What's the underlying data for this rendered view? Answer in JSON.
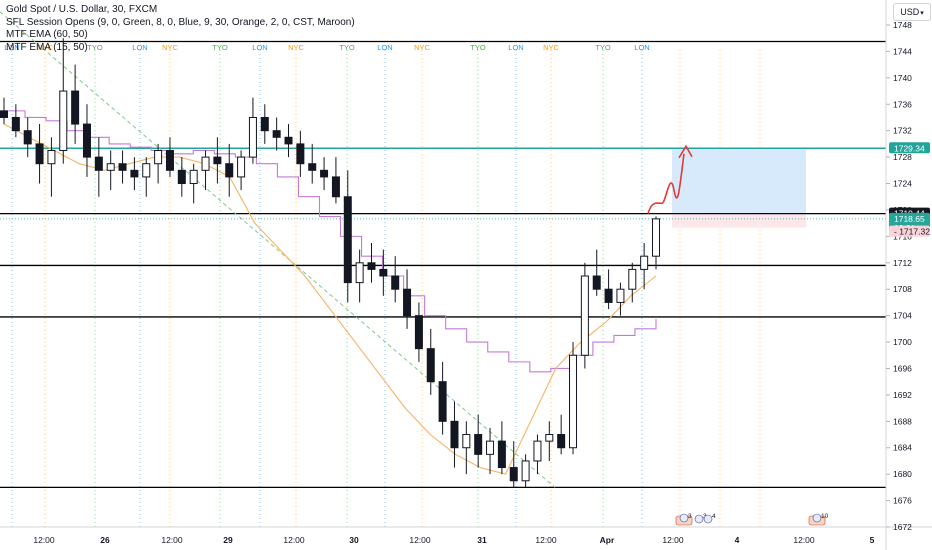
{
  "legend": {
    "line1": "Gold Spot / U.S. Dollar, 30, FXCM",
    "line2": "SFL Session Opens (9, 0, Green, 8, 0, Blue, 9, 30, Orange, 2, 0, CST, Maroon)",
    "line3": "MTF EMA (60, 50)",
    "line4": "MTF EMA (15, 50)"
  },
  "currency_button": {
    "label": "USD"
  },
  "colors": {
    "background": "#ffffff",
    "candle": "#131722",
    "ema60": "#c27bd9",
    "ema15": "#f7b264",
    "trendline": "#7fc98c",
    "level_line": "#000000",
    "target_line": "#22a49a",
    "target_box": "#d6eafc",
    "stop_box": "#fce8ea",
    "projection": "#e53935",
    "tyo": "#4caf50",
    "lon": "#2196f3",
    "nyc": "#ff9800",
    "price_tag": "#26a69a",
    "red_tag": "#f9d3d8"
  },
  "chart_data": {
    "type": "candlestick",
    "symbol": "Gold Spot / U.S. Dollar",
    "interval": "30",
    "ylim": [
      1670,
      1752
    ],
    "y_ticks": [
      1672,
      1676,
      1680,
      1684,
      1688,
      1692,
      1696,
      1700,
      1704,
      1708,
      1712,
      1716,
      1720,
      1724,
      1728,
      1732,
      1736,
      1740,
      1744,
      1748
    ],
    "x_ticks": [
      "12:00",
      "26",
      "12:00",
      "29",
      "12:00",
      "30",
      "12:00",
      "31",
      "12:00",
      "Apr",
      "12:00",
      "4",
      "12:00",
      "5"
    ],
    "session_labels": [
      "LON",
      "NYC",
      "TYO",
      "LON",
      "NYC",
      "TYO",
      "LON",
      "NYC",
      "TYO",
      "LON",
      "NYC",
      "TYO",
      "LON",
      "NYC",
      "TYO",
      "LON"
    ],
    "horizontal_levels": [
      1745.5,
      1729.34,
      1719.44,
      1711.6,
      1703.8,
      1678.0
    ],
    "price_labels": [
      {
        "text": "1729.34",
        "value": 1729.34,
        "kind": "target"
      },
      {
        "text": "1719.44",
        "value": 1719.44,
        "kind": "level"
      },
      {
        "text": "1718.65",
        "value": 1718.65,
        "kind": "last"
      },
      {
        "text": "02:31",
        "value": 1717.0,
        "kind": "countdown"
      },
      {
        "text": "1717.32",
        "value": 1717.32,
        "kind": "stop"
      }
    ],
    "ema60": [
      1735,
      1734,
      1733.5,
      1732,
      1731,
      1730,
      1729.5,
      1729,
      1728.5,
      1729,
      1728.5,
      1728,
      1727,
      1725,
      1722,
      1719,
      1716,
      1713,
      1710,
      1707,
      1704,
      1702,
      1700,
      1698.5,
      1697,
      1695.5,
      1696,
      1698,
      1700,
      1701,
      1702,
      1703.5
    ],
    "ema15": [
      1733,
      1731,
      1729,
      1727,
      1726,
      1727,
      1728,
      1728,
      1727,
      1725,
      1718,
      1714,
      1710,
      1705,
      1700,
      1695,
      1690,
      1686,
      1683,
      1681,
      1680,
      1688,
      1696,
      1700,
      1703,
      1707,
      1710
    ],
    "candles": [
      [
        1735,
        1737,
        1733,
        1734
      ],
      [
        1734,
        1736,
        1731,
        1732
      ],
      [
        1732,
        1734,
        1728,
        1730
      ],
      [
        1730,
        1733,
        1724,
        1727
      ],
      [
        1727,
        1731,
        1722,
        1729
      ],
      [
        1729,
        1746,
        1727,
        1738
      ],
      [
        1738,
        1742,
        1730,
        1733
      ],
      [
        1733,
        1736,
        1725,
        1728
      ],
      [
        1728,
        1731,
        1722,
        1726
      ],
      [
        1726,
        1729,
        1723,
        1727
      ],
      [
        1727,
        1729,
        1724,
        1726
      ],
      [
        1726,
        1728,
        1723,
        1725
      ],
      [
        1725,
        1728,
        1722,
        1727
      ],
      [
        1727,
        1730,
        1724,
        1729
      ],
      [
        1729,
        1731,
        1725,
        1726
      ],
      [
        1726,
        1728,
        1722,
        1724
      ],
      [
        1724,
        1727,
        1721,
        1726
      ],
      [
        1726,
        1729,
        1723,
        1728
      ],
      [
        1728,
        1731,
        1724,
        1727
      ],
      [
        1727,
        1730,
        1722,
        1725
      ],
      [
        1725,
        1729,
        1723,
        1728
      ],
      [
        1728,
        1737,
        1727,
        1734
      ],
      [
        1734,
        1736,
        1730,
        1732
      ],
      [
        1732,
        1734,
        1729,
        1731
      ],
      [
        1731,
        1733,
        1728,
        1730
      ],
      [
        1730,
        1732,
        1725,
        1727
      ],
      [
        1727,
        1730,
        1724,
        1726
      ],
      [
        1726,
        1728,
        1723,
        1725
      ],
      [
        1725,
        1728,
        1721,
        1722
      ],
      [
        1722,
        1726,
        1706,
        1709
      ],
      [
        1709,
        1714,
        1706,
        1712
      ],
      [
        1712,
        1715,
        1709,
        1711
      ],
      [
        1711,
        1714,
        1707,
        1710
      ],
      [
        1710,
        1713,
        1706,
        1708
      ],
      [
        1708,
        1711,
        1702,
        1704
      ],
      [
        1704,
        1706,
        1697,
        1699
      ],
      [
        1699,
        1702,
        1692,
        1694
      ],
      [
        1694,
        1697,
        1686,
        1688
      ],
      [
        1688,
        1691,
        1681,
        1684
      ],
      [
        1684,
        1688,
        1680,
        1686
      ],
      [
        1686,
        1689,
        1681,
        1683
      ],
      [
        1683,
        1687,
        1680,
        1685
      ],
      [
        1685,
        1688,
        1680,
        1681
      ],
      [
        1681,
        1685,
        1678,
        1679
      ],
      [
        1679,
        1683,
        1678,
        1682
      ],
      [
        1682,
        1686,
        1680,
        1685
      ],
      [
        1685,
        1688,
        1682,
        1686
      ],
      [
        1686,
        1689,
        1683,
        1684
      ],
      [
        1684,
        1700,
        1683,
        1698
      ],
      [
        1698,
        1712,
        1696,
        1710
      ],
      [
        1710,
        1714,
        1707,
        1708
      ],
      [
        1708,
        1711,
        1705,
        1706
      ],
      [
        1706,
        1709,
        1704,
        1708
      ],
      [
        1708,
        1712,
        1706,
        1711
      ],
      [
        1711,
        1715,
        1708,
        1713
      ],
      [
        1713,
        1719,
        1711,
        1718.65
      ]
    ]
  },
  "event_icons": [
    {
      "label": "3",
      "value": 3
    },
    {
      "label": "3",
      "value": 3
    },
    {
      "label": "4",
      "value": 4
    },
    {
      "label": "10",
      "value": 10
    }
  ]
}
